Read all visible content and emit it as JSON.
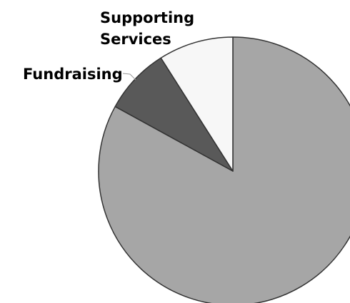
{
  "chart_data": {
    "type": "pie",
    "title": "",
    "slices": [
      {
        "label": "",
        "value": 83,
        "color": "#a6a6a6"
      },
      {
        "label": "Fundraising",
        "value": 8,
        "color": "#595959"
      },
      {
        "label": "Supporting Services",
        "label_lines": [
          "Supporting",
          "Services"
        ],
        "value": 9,
        "color": "#f7f7f7"
      }
    ],
    "start_angle": "12 o'clock",
    "direction": "clockwise",
    "stroke_color": "#333333",
    "legend": "none"
  }
}
